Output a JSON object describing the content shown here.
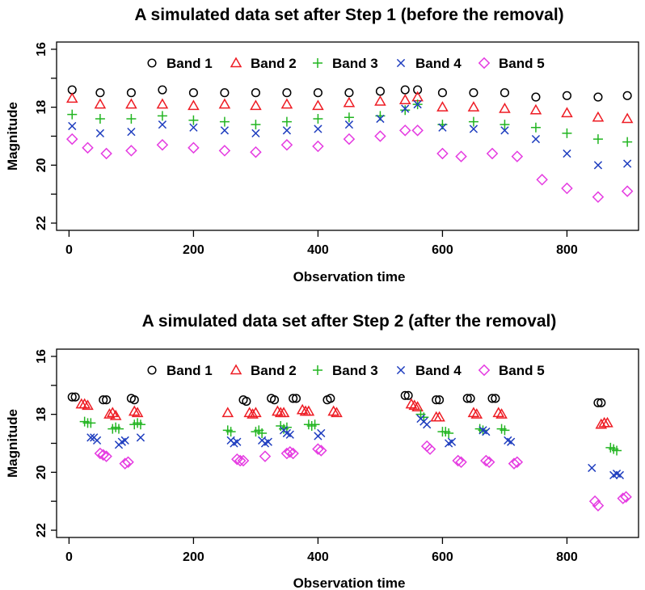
{
  "chart_data": [
    {
      "type": "scatter",
      "title": "A simulated data set after Step 1 (before the removal)",
      "xlabel": "Observation time",
      "ylabel": "Magnitude",
      "xlim": [
        -20,
        915
      ],
      "ylim": [
        22.25,
        15.75
      ],
      "y_inverted": true,
      "xticks": [
        0,
        200,
        400,
        600,
        800
      ],
      "yticks": [
        16,
        18,
        20,
        22
      ],
      "legend_position": "top",
      "series": [
        {
          "name": "Band 1",
          "marker": "circle",
          "color": "#000000",
          "x": [
            5,
            50,
            100,
            150,
            200,
            250,
            300,
            350,
            400,
            450,
            500,
            540,
            560,
            600,
            650,
            700,
            750,
            800,
            850,
            897
          ],
          "y": [
            17.4,
            17.5,
            17.5,
            17.4,
            17.5,
            17.5,
            17.5,
            17.5,
            17.5,
            17.5,
            17.45,
            17.4,
            17.4,
            17.5,
            17.5,
            17.5,
            17.65,
            17.6,
            17.65,
            17.6
          ]
        },
        {
          "name": "Band 2",
          "marker": "triangle",
          "color": "#ee1c24",
          "x": [
            5,
            50,
            100,
            150,
            200,
            250,
            300,
            350,
            400,
            450,
            500,
            540,
            560,
            600,
            650,
            700,
            750,
            800,
            850,
            897
          ],
          "y": [
            17.7,
            17.9,
            17.9,
            17.9,
            17.95,
            17.9,
            17.95,
            17.9,
            17.95,
            17.85,
            17.8,
            17.75,
            17.65,
            18.0,
            18.0,
            18.05,
            18.1,
            18.2,
            18.35,
            18.4
          ]
        },
        {
          "name": "Band 3",
          "marker": "plus",
          "color": "#22b521",
          "x": [
            5,
            50,
            100,
            150,
            200,
            250,
            300,
            350,
            400,
            450,
            500,
            540,
            560,
            600,
            650,
            700,
            750,
            800,
            850,
            897
          ],
          "y": [
            18.25,
            18.4,
            18.4,
            18.3,
            18.45,
            18.5,
            18.6,
            18.5,
            18.4,
            18.35,
            18.3,
            18.1,
            17.9,
            18.6,
            18.5,
            18.6,
            18.7,
            18.9,
            19.1,
            19.2
          ]
        },
        {
          "name": "Band 4",
          "marker": "x",
          "color": "#1f3ebf",
          "x": [
            5,
            50,
            100,
            150,
            200,
            250,
            300,
            350,
            400,
            450,
            500,
            540,
            560,
            600,
            650,
            700,
            750,
            800,
            850,
            897
          ],
          "y": [
            18.65,
            18.9,
            18.85,
            18.6,
            18.7,
            18.8,
            18.9,
            18.8,
            18.75,
            18.6,
            18.4,
            18.05,
            17.9,
            18.7,
            18.75,
            18.8,
            19.1,
            19.6,
            20.0,
            19.95
          ]
        },
        {
          "name": "Band 5",
          "marker": "diamond",
          "color": "#e53be1",
          "x": [
            5,
            30,
            60,
            100,
            150,
            200,
            250,
            300,
            350,
            400,
            450,
            500,
            540,
            560,
            600,
            630,
            680,
            720,
            760,
            800,
            850,
            897
          ],
          "y": [
            19.1,
            19.4,
            19.6,
            19.5,
            19.3,
            19.4,
            19.5,
            19.55,
            19.3,
            19.35,
            19.1,
            19.0,
            18.8,
            18.8,
            19.6,
            19.7,
            19.6,
            19.7,
            20.5,
            20.8,
            21.1,
            20.9
          ]
        }
      ]
    },
    {
      "type": "scatter",
      "title": "A simulated data set after Step 2 (after the removal)",
      "xlabel": "Observation time",
      "ylabel": "Magnitude",
      "xlim": [
        -20,
        915
      ],
      "ylim": [
        22.25,
        15.75
      ],
      "y_inverted": true,
      "xticks": [
        0,
        200,
        400,
        600,
        800
      ],
      "yticks": [
        16,
        18,
        20,
        22
      ],
      "legend_position": "top",
      "series": [
        {
          "name": "Band 1",
          "marker": "circle",
          "color": "#000000",
          "x": [
            5,
            10,
            55,
            60,
            100,
            105,
            280,
            285,
            325,
            330,
            360,
            365,
            415,
            420,
            540,
            545,
            590,
            595,
            640,
            645,
            680,
            685,
            850,
            855
          ],
          "y": [
            17.4,
            17.4,
            17.5,
            17.5,
            17.45,
            17.5,
            17.5,
            17.55,
            17.45,
            17.5,
            17.45,
            17.45,
            17.5,
            17.45,
            17.35,
            17.35,
            17.5,
            17.5,
            17.45,
            17.45,
            17.45,
            17.45,
            17.6,
            17.6
          ]
        },
        {
          "name": "Band 2",
          "marker": "triangle",
          "color": "#ee1c24",
          "x": [
            20,
            25,
            30,
            65,
            70,
            75,
            105,
            110,
            255,
            290,
            295,
            300,
            335,
            340,
            345,
            375,
            380,
            385,
            425,
            430,
            550,
            555,
            560,
            590,
            595,
            650,
            655,
            690,
            695,
            855,
            860,
            865
          ],
          "y": [
            17.65,
            17.65,
            17.7,
            18.0,
            17.95,
            18.05,
            17.9,
            17.95,
            17.95,
            17.95,
            18.0,
            17.95,
            17.9,
            17.95,
            17.95,
            17.85,
            17.9,
            17.9,
            17.9,
            17.95,
            17.65,
            17.7,
            17.75,
            18.1,
            18.1,
            17.95,
            18.0,
            17.95,
            18.0,
            18.35,
            18.3,
            18.3
          ]
        },
        {
          "name": "Band 3",
          "marker": "plus",
          "color": "#22b521",
          "x": [
            25,
            30,
            35,
            70,
            75,
            80,
            105,
            110,
            115,
            255,
            260,
            300,
            305,
            310,
            340,
            345,
            350,
            385,
            390,
            395,
            565,
            570,
            600,
            605,
            610,
            660,
            665,
            695,
            700,
            870,
            875,
            880
          ],
          "y": [
            18.25,
            18.3,
            18.3,
            18.5,
            18.45,
            18.5,
            18.35,
            18.3,
            18.35,
            18.55,
            18.6,
            18.6,
            18.55,
            18.65,
            18.4,
            18.5,
            18.45,
            18.35,
            18.4,
            18.35,
            18.0,
            18.1,
            18.6,
            18.6,
            18.65,
            18.5,
            18.55,
            18.5,
            18.55,
            19.15,
            19.2,
            19.25
          ]
        },
        {
          "name": "Band 4",
          "marker": "x",
          "color": "#1f3ebf",
          "x": [
            35,
            40,
            45,
            80,
            85,
            90,
            115,
            260,
            265,
            270,
            310,
            315,
            320,
            345,
            350,
            355,
            400,
            405,
            565,
            570,
            575,
            610,
            615,
            665,
            670,
            705,
            710,
            840,
            875,
            880,
            885
          ],
          "y": [
            18.8,
            18.8,
            18.9,
            19.05,
            18.95,
            18.9,
            18.8,
            18.9,
            19.0,
            18.95,
            18.9,
            19.0,
            18.95,
            18.55,
            18.65,
            18.7,
            18.75,
            18.65,
            18.15,
            18.25,
            18.35,
            19.0,
            18.95,
            18.55,
            18.6,
            18.9,
            18.95,
            19.85,
            20.1,
            20.05,
            20.1
          ]
        },
        {
          "name": "Band 5",
          "marker": "diamond",
          "color": "#e53be1",
          "x": [
            50,
            55,
            60,
            90,
            95,
            270,
            275,
            280,
            315,
            350,
            355,
            360,
            400,
            405,
            575,
            580,
            625,
            630,
            670,
            675,
            715,
            720,
            845,
            850,
            890,
            895
          ],
          "y": [
            19.35,
            19.4,
            19.45,
            19.7,
            19.65,
            19.55,
            19.6,
            19.6,
            19.45,
            19.35,
            19.3,
            19.35,
            19.2,
            19.25,
            19.1,
            19.2,
            19.6,
            19.65,
            19.6,
            19.65,
            19.7,
            19.65,
            21.0,
            21.15,
            20.9,
            20.85
          ]
        }
      ]
    }
  ]
}
